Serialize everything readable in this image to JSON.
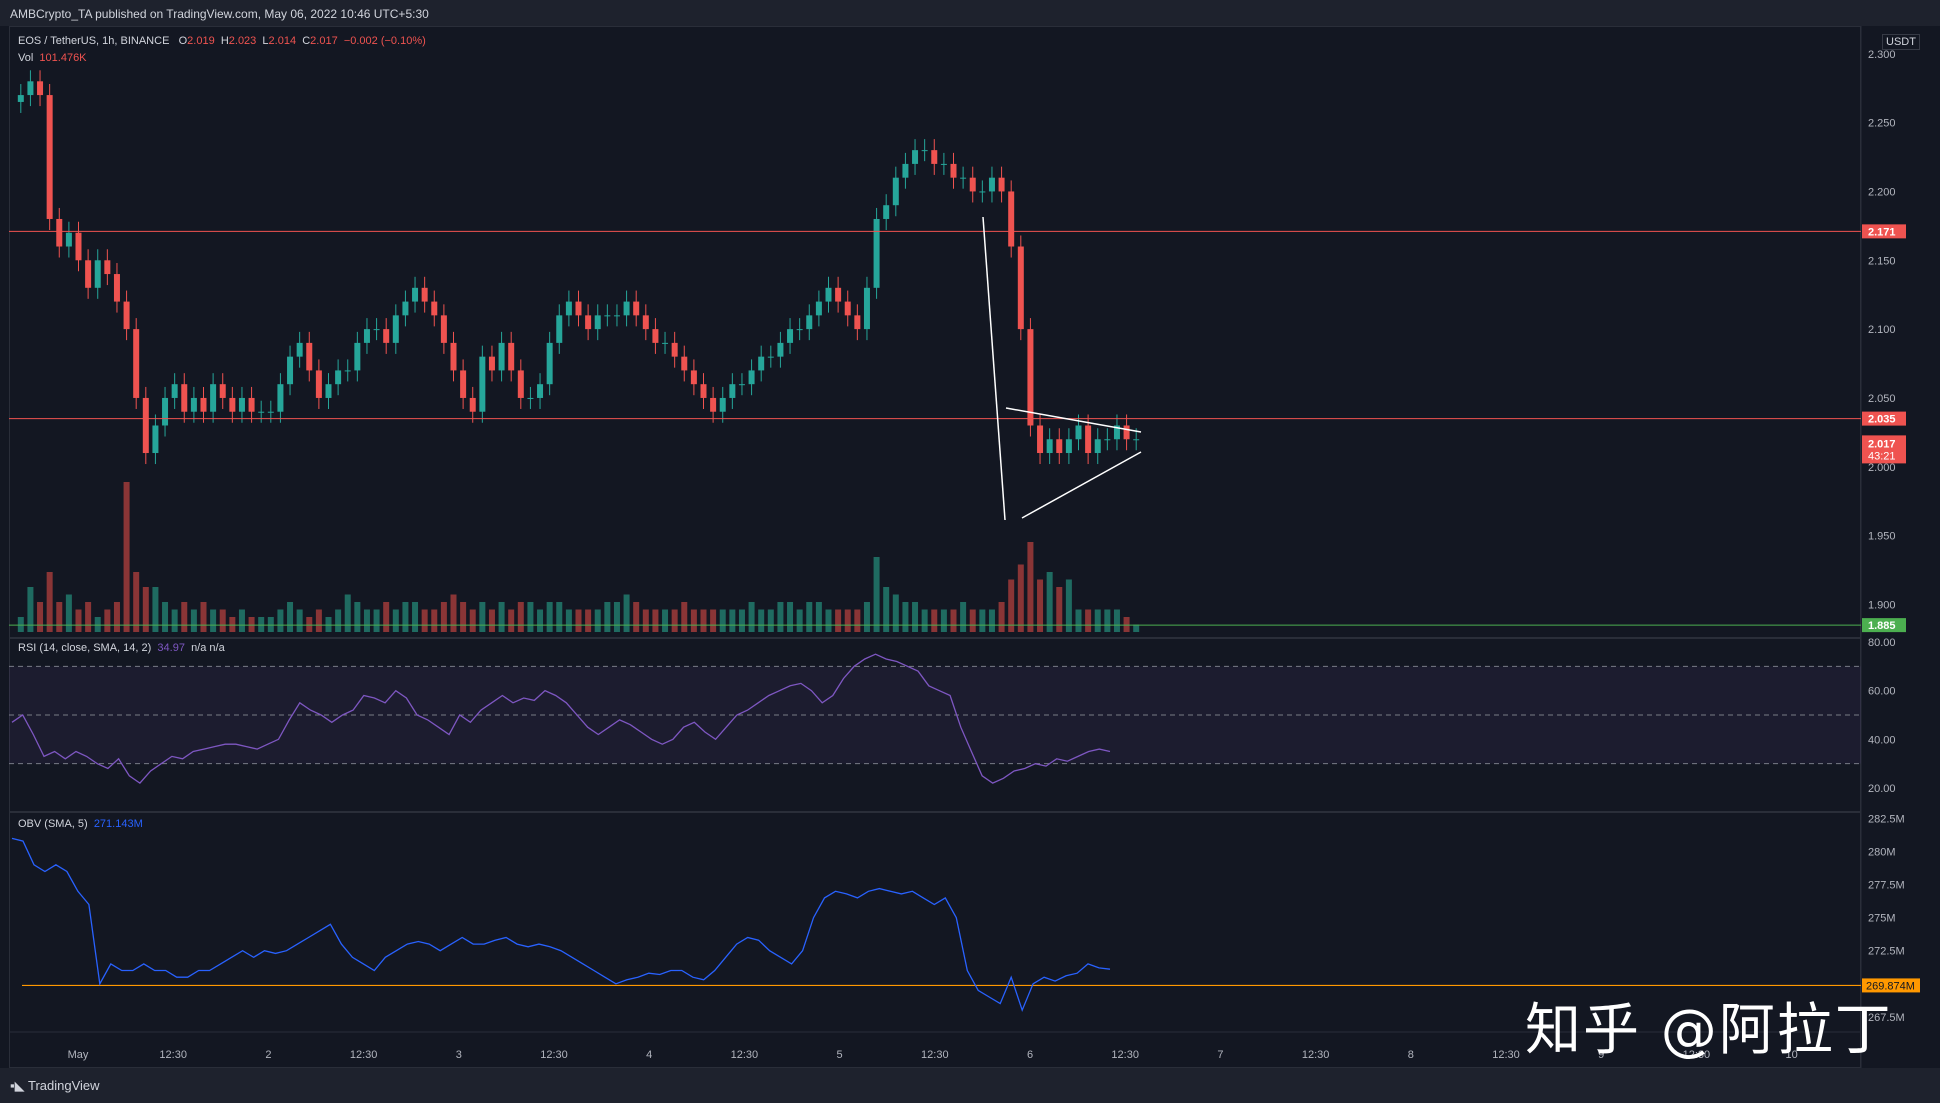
{
  "header": {
    "published": "AMBCrypto_TA published on TradingView.com, May 06, 2022 10:46 UTC+5:30"
  },
  "footer": {
    "brand": "TradingView"
  },
  "watermark": "知乎 @阿拉丁",
  "currency_label": "USDT",
  "legend": {
    "symbol": "EOS / TetherUS, 1h, BINANCE",
    "o_label": "O",
    "o": "2.019",
    "h_label": "H",
    "h": "2.023",
    "l_label": "L",
    "l": "2.014",
    "c_label": "C",
    "c": "2.017",
    "chg": "−0.002 (−0.10%)",
    "vol_label": "Vol",
    "vol": "101.476K",
    "rsi_label": "RSI (14, close, SMA, 14, 2)",
    "rsi_val": "34.97",
    "rsi_na": "n/a  n/a",
    "obv_label": "OBV (SMA, 5)",
    "obv_val": "271.143M"
  },
  "colors": {
    "up": "#26a69a",
    "down": "#ef5350",
    "rsi": "#7e57c2",
    "obv": "#2962ff",
    "support": "#4caf50",
    "obv_line": "#ff9800"
  },
  "chart_data": [
    {
      "type": "candlestick",
      "title": "EOS / TetherUS, 1h, BINANCE",
      "x_ticks": [
        "May",
        "12:30",
        "2",
        "12:30",
        "3",
        "12:30",
        "4",
        "12:30",
        "5",
        "12:30",
        "6",
        "12:30",
        "7",
        "12:30",
        "8",
        "12:30",
        "9",
        "12:30",
        "10"
      ],
      "ylim": [
        1.88,
        2.31
      ],
      "y_ticks": [
        "2.300",
        "2.250",
        "2.200",
        "2.150",
        "2.100",
        "2.050",
        "2.000",
        "1.950",
        "1.900"
      ],
      "horizontal_levels": [
        {
          "value": 2.171,
          "label": "2.171",
          "color": "#ef5350"
        },
        {
          "value": 2.035,
          "label": "2.035",
          "color": "#ef5350"
        },
        {
          "value": 1.885,
          "label": "1.885",
          "color": "#4caf50"
        }
      ],
      "last_price": {
        "value": 2.017,
        "label": "2.017",
        "countdown": "43:21"
      },
      "closes": [
        2.27,
        2.28,
        2.27,
        2.18,
        2.16,
        2.17,
        2.15,
        2.13,
        2.15,
        2.14,
        2.12,
        2.1,
        2.05,
        2.01,
        2.03,
        2.05,
        2.06,
        2.04,
        2.05,
        2.04,
        2.06,
        2.05,
        2.04,
        2.05,
        2.04,
        2.04,
        2.04,
        2.06,
        2.08,
        2.09,
        2.07,
        2.05,
        2.06,
        2.07,
        2.07,
        2.09,
        2.1,
        2.1,
        2.09,
        2.11,
        2.12,
        2.13,
        2.12,
        2.11,
        2.09,
        2.07,
        2.05,
        2.04,
        2.08,
        2.07,
        2.09,
        2.07,
        2.05,
        2.05,
        2.06,
        2.09,
        2.11,
        2.12,
        2.11,
        2.1,
        2.11,
        2.11,
        2.11,
        2.12,
        2.11,
        2.1,
        2.09,
        2.09,
        2.08,
        2.07,
        2.06,
        2.05,
        2.04,
        2.05,
        2.06,
        2.06,
        2.07,
        2.08,
        2.08,
        2.09,
        2.1,
        2.1,
        2.11,
        2.12,
        2.13,
        2.12,
        2.11,
        2.1,
        2.13,
        2.18,
        2.19,
        2.21,
        2.22,
        2.23,
        2.23,
        2.22,
        2.22,
        2.21,
        2.21,
        2.2,
        2.2,
        2.21,
        2.2,
        2.16,
        2.1,
        2.03,
        2.01,
        2.02,
        2.01,
        2.02,
        2.03,
        2.01,
        2.02,
        2.02,
        2.03,
        2.02,
        2.02
      ],
      "volume_relative": [
        0.1,
        0.3,
        0.2,
        0.4,
        0.2,
        0.25,
        0.15,
        0.2,
        0.1,
        0.15,
        0.2,
        1.0,
        0.4,
        0.3,
        0.3,
        0.2,
        0.15,
        0.2,
        0.15,
        0.2,
        0.15,
        0.15,
        0.1,
        0.15,
        0.1,
        0.1,
        0.1,
        0.15,
        0.2,
        0.15,
        0.1,
        0.15,
        0.1,
        0.15,
        0.25,
        0.2,
        0.15,
        0.15,
        0.2,
        0.15,
        0.2,
        0.2,
        0.15,
        0.15,
        0.2,
        0.25,
        0.2,
        0.15,
        0.2,
        0.15,
        0.2,
        0.15,
        0.2,
        0.2,
        0.15,
        0.2,
        0.2,
        0.15,
        0.15,
        0.15,
        0.15,
        0.2,
        0.2,
        0.25,
        0.2,
        0.15,
        0.15,
        0.15,
        0.15,
        0.2,
        0.15,
        0.15,
        0.15,
        0.15,
        0.15,
        0.15,
        0.2,
        0.15,
        0.15,
        0.2,
        0.2,
        0.15,
        0.2,
        0.2,
        0.15,
        0.15,
        0.15,
        0.15,
        0.2,
        0.5,
        0.3,
        0.25,
        0.2,
        0.2,
        0.15,
        0.15,
        0.15,
        0.15,
        0.2,
        0.15,
        0.15,
        0.15,
        0.2,
        0.35,
        0.45,
        0.6,
        0.35,
        0.4,
        0.3,
        0.35,
        0.15,
        0.15,
        0.15,
        0.15,
        0.15,
        0.1,
        0.05
      ]
    },
    {
      "type": "line",
      "title": "RSI (14, close, SMA, 14, 2)",
      "ylim": [
        20,
        80
      ],
      "y_ticks": [
        "80.00",
        "60.00",
        "40.00",
        "20.00"
      ],
      "bands": [
        30,
        50,
        70
      ],
      "values": [
        47,
        50,
        42,
        33,
        35,
        32,
        35,
        33,
        30,
        28,
        32,
        25,
        22,
        27,
        30,
        33,
        32,
        35,
        36,
        37,
        38,
        38,
        37,
        36,
        38,
        40,
        48,
        55,
        52,
        50,
        47,
        50,
        52,
        58,
        57,
        55,
        60,
        57,
        50,
        48,
        45,
        42,
        50,
        47,
        52,
        55,
        58,
        55,
        57,
        56,
        60,
        58,
        55,
        50,
        45,
        42,
        45,
        48,
        46,
        43,
        40,
        38,
        40,
        45,
        47,
        43,
        40,
        45,
        50,
        52,
        55,
        58,
        60,
        62,
        63,
        60,
        55,
        58,
        65,
        70,
        73,
        75,
        73,
        72,
        70,
        68,
        62,
        60,
        58,
        45,
        35,
        25,
        22,
        24,
        27,
        28,
        30,
        29,
        32,
        31,
        33,
        35,
        36,
        35
      ]
    },
    {
      "type": "line",
      "title": "OBV (SMA, 5)",
      "ylim": [
        266.5,
        283
      ],
      "y_ticks": [
        "282.5M",
        "280M",
        "277.5M",
        "275M",
        "272.5M",
        "267.5M"
      ],
      "horizontal_levels": [
        {
          "value": 269.874,
          "label": "269.874M",
          "color": "#ff9800"
        }
      ],
      "last_value_label": "271.143M",
      "values": [
        281,
        280.8,
        279,
        278.5,
        279,
        278.5,
        277,
        276,
        270,
        271.5,
        271,
        271,
        271.5,
        271,
        271,
        270.5,
        270.5,
        271,
        271,
        271.5,
        272,
        272.5,
        272,
        272.5,
        272.3,
        272.5,
        273,
        273.5,
        274,
        274.5,
        273,
        272,
        271.5,
        271,
        272,
        272.5,
        273,
        273.2,
        273,
        272.5,
        273,
        273.5,
        273,
        273,
        273.3,
        273.5,
        273,
        272.8,
        273,
        272.8,
        272.5,
        272,
        271.5,
        271,
        270.5,
        270,
        270.3,
        270.5,
        270.8,
        270.7,
        271,
        271,
        270.5,
        270.3,
        271,
        272,
        273,
        273.5,
        273.3,
        272.5,
        272,
        271.5,
        272.5,
        275,
        276.5,
        277,
        276.8,
        276.5,
        277,
        277.2,
        277,
        276.8,
        277,
        276.5,
        276,
        276.5,
        275,
        271,
        269.5,
        269,
        268.5,
        270.5,
        268,
        270,
        270.5,
        270.2,
        270.6,
        270.8,
        271.5,
        271.2,
        271.1
      ]
    }
  ]
}
